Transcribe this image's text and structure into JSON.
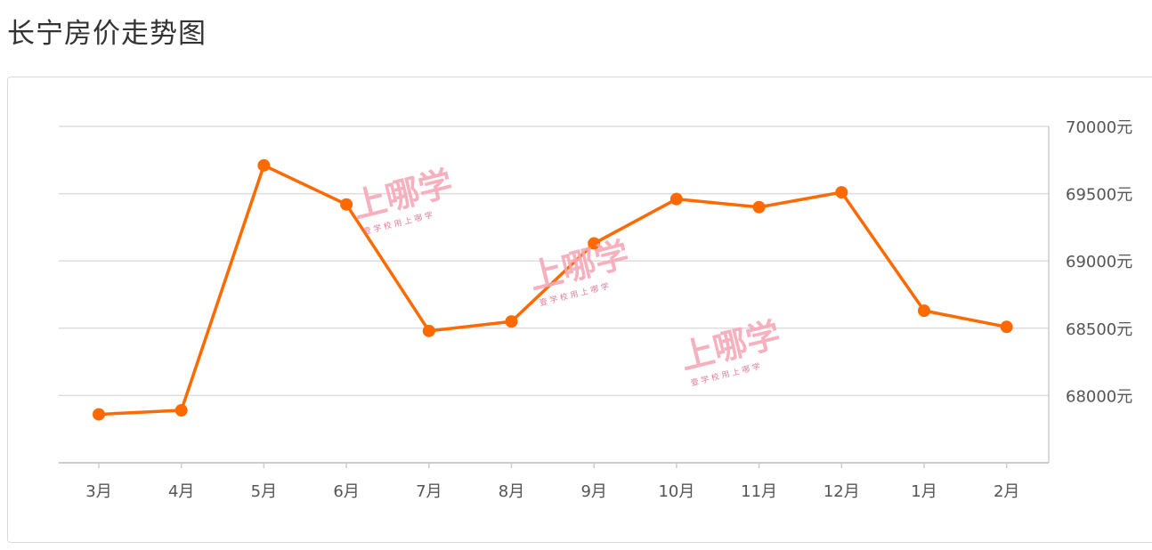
{
  "title": "长宁房价走势图",
  "watermark": {
    "main": "上哪学",
    "sub": "壹 学 校    用 上 哪 学"
  },
  "colors": {
    "line": "#ff6a00",
    "grid": "#dddddd",
    "axis": "#cccccc"
  },
  "chart_data": {
    "type": "line",
    "categories": [
      "3月",
      "4月",
      "5月",
      "6月",
      "7月",
      "8月",
      "9月",
      "10月",
      "11月",
      "12月",
      "1月",
      "2月"
    ],
    "series": [
      {
        "values": [
          67860,
          67890,
          69710,
          69420,
          68480,
          68550,
          69130,
          69460,
          69400,
          69510,
          68630,
          68510
        ]
      }
    ],
    "y_ticks": [
      68000,
      68500,
      69000,
      69500,
      70000
    ],
    "y_tick_labels": [
      "68000元",
      "68500元",
      "69000元",
      "69500元",
      "70000元"
    ],
    "ylim": [
      67500,
      70000
    ],
    "grid": true,
    "y_axis_position": "right"
  }
}
